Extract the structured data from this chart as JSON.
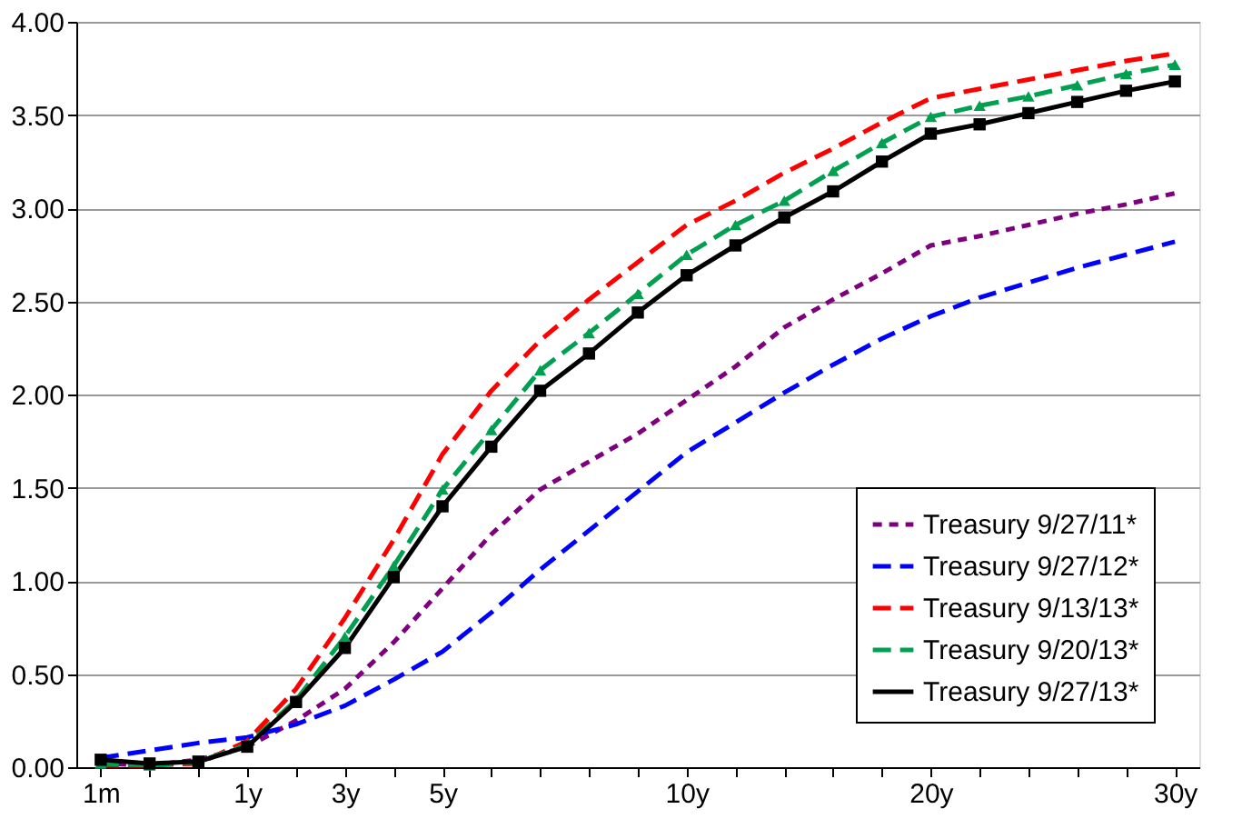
{
  "chart_data": {
    "type": "line",
    "categories": [
      "1m",
      null,
      null,
      "1y",
      null,
      "3y",
      null,
      "5y",
      null,
      null,
      null,
      null,
      "10y",
      null,
      null,
      null,
      null,
      "20y",
      null,
      null,
      null,
      null,
      "30y"
    ],
    "series": [
      {
        "name": "Treasury 9/27/11*",
        "color": "#7f007f",
        "line_style": "dotted",
        "marker": "none",
        "values": [
          0.02,
          0.01,
          0.04,
          0.11,
          0.25,
          0.42,
          0.67,
          0.96,
          1.25,
          1.49,
          1.64,
          1.79,
          1.97,
          2.15,
          2.36,
          2.51,
          2.65,
          2.8,
          2.85,
          2.91,
          2.97,
          3.02,
          3.08
        ]
      },
      {
        "name": "Treasury 9/27/12*",
        "color": "#0000ff",
        "line_style": "dashed",
        "marker": "none",
        "values": [
          0.05,
          0.09,
          0.13,
          0.16,
          0.23,
          0.33,
          0.47,
          0.62,
          0.83,
          1.06,
          1.27,
          1.48,
          1.69,
          1.85,
          2.01,
          2.16,
          2.3,
          2.42,
          2.52,
          2.6,
          2.68,
          2.75,
          2.82
        ]
      },
      {
        "name": "Treasury 9/13/13*",
        "color": "#ff0000",
        "line_style": "dashed",
        "marker": "none",
        "values": [
          0.01,
          0.01,
          0.02,
          0.14,
          0.42,
          0.8,
          1.22,
          1.68,
          2.02,
          2.29,
          2.51,
          2.71,
          2.91,
          3.04,
          3.19,
          3.32,
          3.46,
          3.59,
          3.64,
          3.69,
          3.74,
          3.79,
          3.83
        ]
      },
      {
        "name": "Treasury 9/20/13*",
        "color": "#00a050",
        "line_style": "dashed",
        "marker": "triangle",
        "values": [
          0.02,
          0.01,
          0.03,
          0.12,
          0.36,
          0.7,
          1.08,
          1.49,
          1.81,
          2.13,
          2.33,
          2.54,
          2.75,
          2.91,
          3.04,
          3.2,
          3.35,
          3.49,
          3.55,
          3.6,
          3.66,
          3.72,
          3.77
        ]
      },
      {
        "name": "Treasury 9/27/13*",
        "color": "#000000",
        "line_style": "solid",
        "marker": "square",
        "values": [
          0.04,
          0.02,
          0.03,
          0.11,
          0.35,
          0.64,
          1.02,
          1.4,
          1.72,
          2.02,
          2.22,
          2.44,
          2.64,
          2.8,
          2.95,
          3.09,
          3.25,
          3.4,
          3.45,
          3.51,
          3.57,
          3.63,
          3.68
        ]
      }
    ],
    "ylim": [
      0,
      4
    ],
    "yticks": [
      {
        "value": 0,
        "label": "0.00"
      },
      {
        "value": 0.5,
        "label": "0.50"
      },
      {
        "value": 1,
        "label": "1.00"
      },
      {
        "value": 1.5,
        "label": "1.50"
      },
      {
        "value": 2,
        "label": "2.00"
      },
      {
        "value": 2.5,
        "label": "2.50"
      },
      {
        "value": 3,
        "label": "3.00"
      },
      {
        "value": 3.5,
        "label": "3.50"
      },
      {
        "value": 4,
        "label": "4.00"
      }
    ],
    "grid": "y",
    "legend": "bottom right"
  }
}
